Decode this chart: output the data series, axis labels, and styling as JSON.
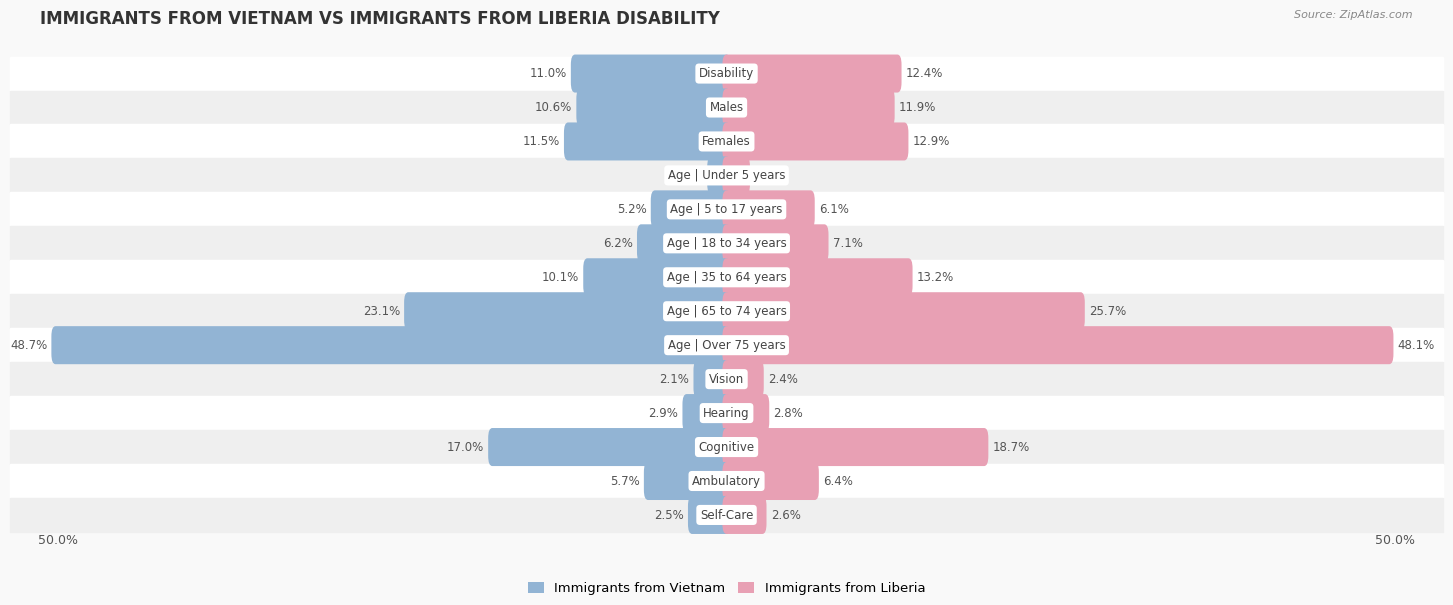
{
  "title": "IMMIGRANTS FROM VIETNAM VS IMMIGRANTS FROM LIBERIA DISABILITY",
  "source": "Source: ZipAtlas.com",
  "categories": [
    "Disability",
    "Males",
    "Females",
    "Age | Under 5 years",
    "Age | 5 to 17 years",
    "Age | 18 to 34 years",
    "Age | 35 to 64 years",
    "Age | 65 to 74 years",
    "Age | Over 75 years",
    "Vision",
    "Hearing",
    "Cognitive",
    "Ambulatory",
    "Self-Care"
  ],
  "vietnam_values": [
    11.0,
    10.6,
    11.5,
    1.1,
    5.2,
    6.2,
    10.1,
    23.1,
    48.7,
    2.1,
    2.9,
    17.0,
    5.7,
    2.5
  ],
  "liberia_values": [
    12.4,
    11.9,
    12.9,
    1.4,
    6.1,
    7.1,
    13.2,
    25.7,
    48.1,
    2.4,
    2.8,
    18.7,
    6.4,
    2.6
  ],
  "vietnam_color": "#92b4d4",
  "liberia_color": "#e8a0b4",
  "vietnam_label": "Immigrants from Vietnam",
  "liberia_label": "Immigrants from Liberia",
  "max_value": 50.0,
  "row_colors": [
    "#ffffff",
    "#efefef"
  ],
  "title_fontsize": 12,
  "label_fontsize": 8.5,
  "value_fontsize": 8.5,
  "tick_fontsize": 9
}
